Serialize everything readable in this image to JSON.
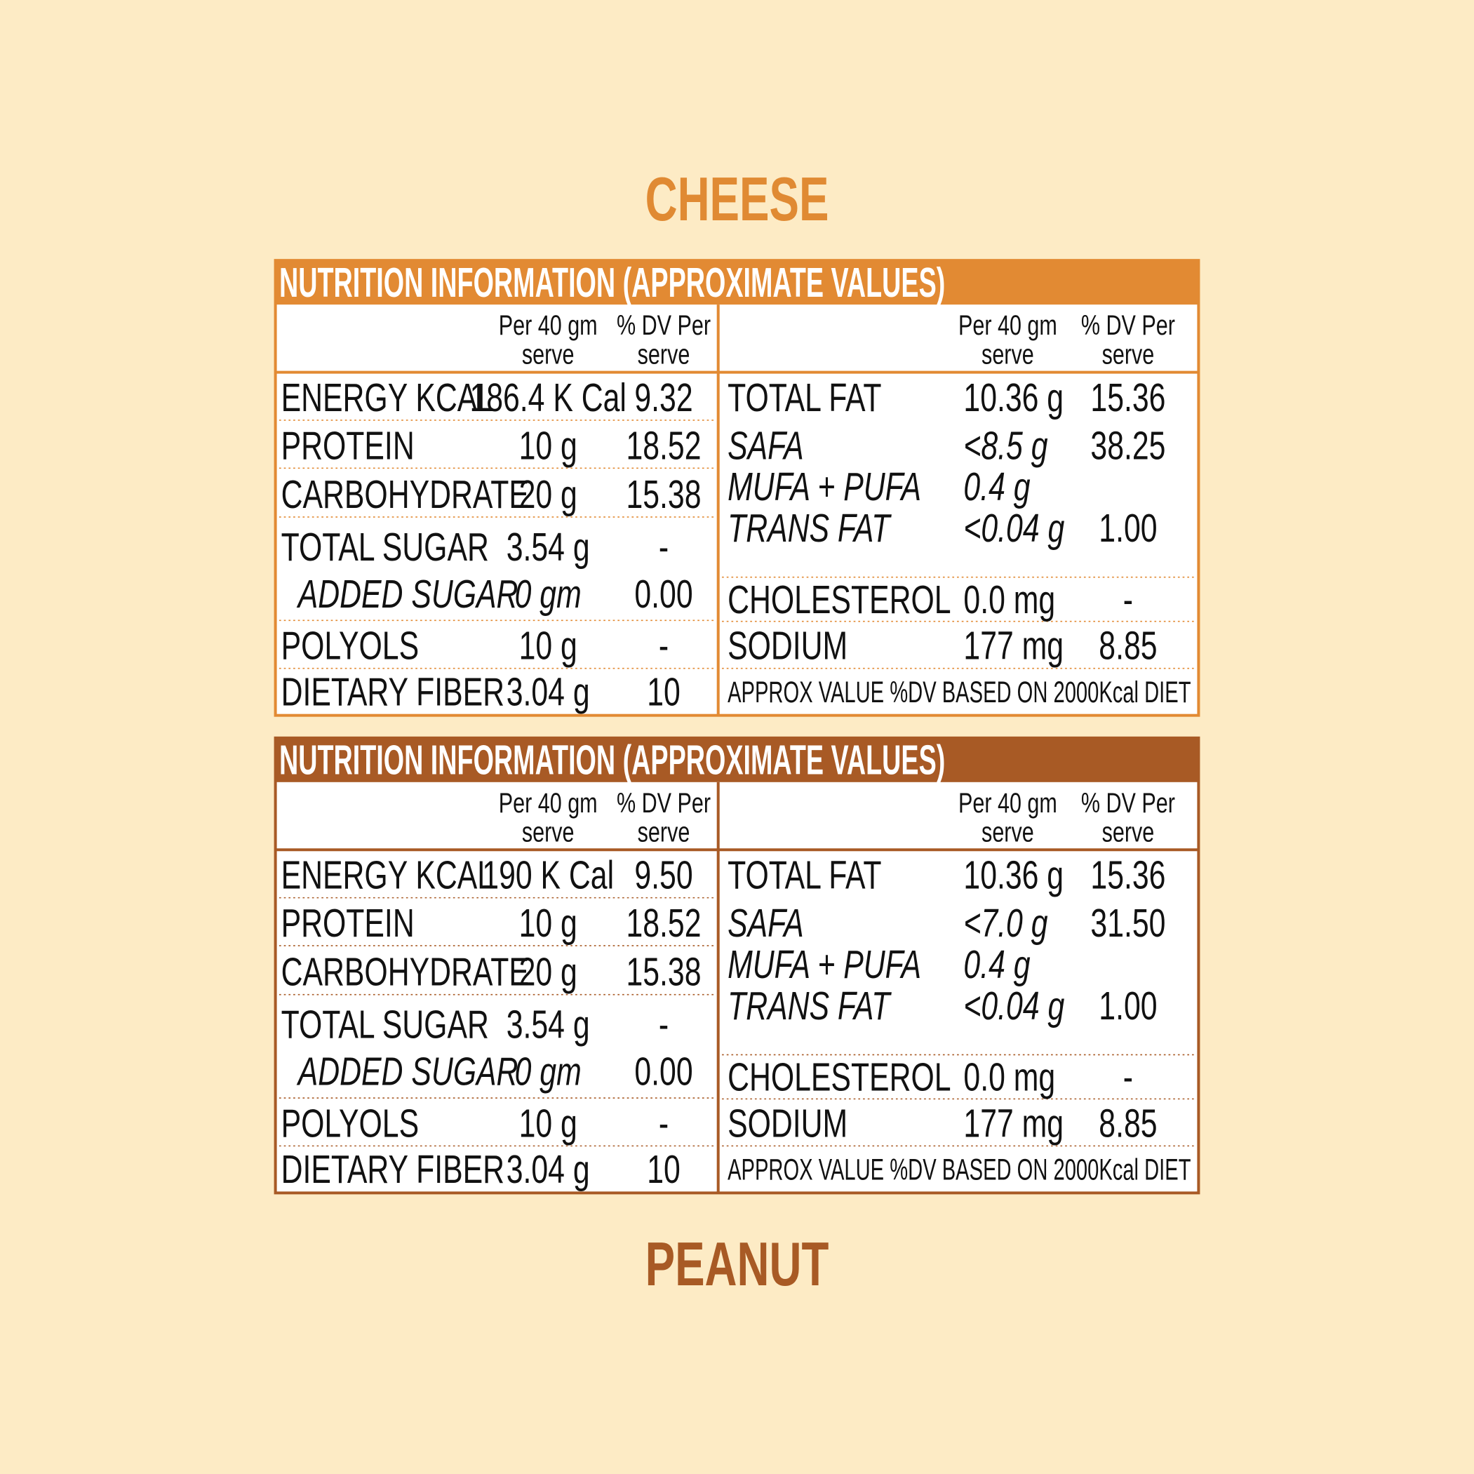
{
  "titles": {
    "top": "CHEESE",
    "bottom": "PEANUT"
  },
  "tables": [
    {
      "header": "NUTRITION INFORMATION (APPROXIMATE VALUES)",
      "color": "#e28a33",
      "per_header": [
        "Per 40 gm",
        "serve"
      ],
      "dv_header": [
        "% DV Per",
        "serve"
      ],
      "left_rows": [
        {
          "label": "ENERGY KCAL",
          "per": "186.4 K Cal",
          "dv": "9.32"
        },
        {
          "label": "PROTEIN",
          "per": "10 g",
          "dv": "18.52"
        },
        {
          "label": "CARBOHYDRATE",
          "per": "20 g",
          "dv": "15.38"
        },
        {
          "label": "TOTAL SUGAR",
          "per": "3.54 g",
          "dv": "-"
        },
        {
          "label": "ADDED SUGAR",
          "per": "0 gm",
          "dv": "0.00",
          "italic": true
        },
        {
          "label": "POLYOLS",
          "per": "10 g",
          "dv": "-"
        },
        {
          "label": "DIETARY FIBER",
          "per": "3.04 g",
          "dv": "10"
        }
      ],
      "right_rows": [
        {
          "label": "TOTAL FAT",
          "per": "10.36 g",
          "dv": "15.36"
        },
        {
          "label": "SAFA",
          "per": "<8.5 g",
          "dv": "38.25",
          "italic": true
        },
        {
          "label": "MUFA + PUFA",
          "per": "0.4 g",
          "dv": null,
          "italic": true
        },
        {
          "label": "TRANS FAT",
          "per": "<0.04 g",
          "dv": "1.00",
          "italic": true
        },
        {
          "label": "CHOLESTEROL",
          "per": "0.0 mg",
          "dv": "-"
        },
        {
          "label": "SODIUM",
          "per": "177 mg",
          "dv": "8.85"
        }
      ],
      "footnote": "APPROX VALUE %DV BASED ON 2000Kcal DIET"
    },
    {
      "header": "NUTRITION INFORMATION (APPROXIMATE VALUES)",
      "color": "#a85a25",
      "per_header": [
        "Per 40 gm",
        "serve"
      ],
      "dv_header": [
        "% DV Per",
        "serve"
      ],
      "left_rows": [
        {
          "label": "ENERGY KCAL",
          "per": "190 K Cal",
          "dv": "9.50"
        },
        {
          "label": "PROTEIN",
          "per": "10 g",
          "dv": "18.52"
        },
        {
          "label": "CARBOHYDRATE",
          "per": "20 g",
          "dv": "15.38"
        },
        {
          "label": "TOTAL SUGAR",
          "per": "3.54 g",
          "dv": "-"
        },
        {
          "label": "ADDED SUGAR",
          "per": "0 gm",
          "dv": "0.00",
          "italic": true
        },
        {
          "label": "POLYOLS",
          "per": "10 g",
          "dv": "-"
        },
        {
          "label": "DIETARY FIBER",
          "per": "3.04 g",
          "dv": "10"
        }
      ],
      "right_rows": [
        {
          "label": "TOTAL FAT",
          "per": "10.36 g",
          "dv": "15.36"
        },
        {
          "label": "SAFA",
          "per": "<7.0 g",
          "dv": "31.50",
          "italic": true
        },
        {
          "label": "MUFA + PUFA",
          "per": "0.4 g",
          "dv": null,
          "italic": true
        },
        {
          "label": "TRANS FAT",
          "per": "<0.04 g",
          "dv": "1.00",
          "italic": true
        },
        {
          "label": "CHOLESTEROL",
          "per": "0.0 mg",
          "dv": "-"
        },
        {
          "label": "SODIUM",
          "per": "177 mg",
          "dv": "8.85"
        }
      ],
      "footnote": "APPROX VALUE %DV BASED ON 2000Kcal DIET"
    }
  ]
}
